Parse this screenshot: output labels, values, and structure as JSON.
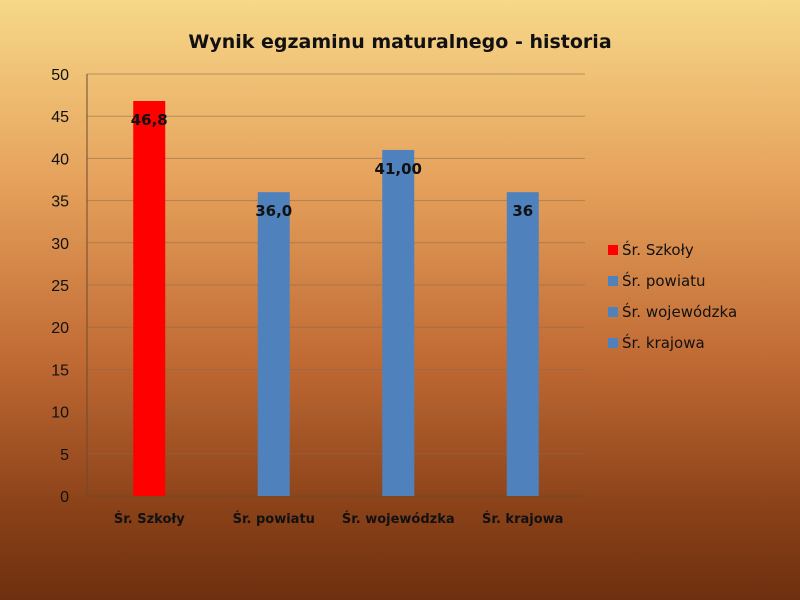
{
  "chart_data": {
    "type": "bar",
    "title": "Wynik egzaminu maturalnego - historia",
    "xlabel": "",
    "ylabel": "",
    "categories": [
      "Śr. Szkoły",
      "Śr. powiatu",
      "Śr. wojewódzka",
      "Śr. krajowa"
    ],
    "values": [
      46.8,
      36.0,
      41.0,
      36.0
    ],
    "data_labels": [
      "46,8",
      "36,0",
      "41,00",
      "36"
    ],
    "colors": [
      "#ff0000",
      "#4f81bd",
      "#4f81bd",
      "#4f81bd"
    ],
    "ylim": [
      0,
      50
    ],
    "yticks": [
      0,
      5,
      10,
      15,
      20,
      25,
      30,
      35,
      40,
      45,
      50
    ],
    "grid": true,
    "legend": {
      "placement": "right",
      "entries": [
        "Śr. Szkoły",
        "Śr. powiatu",
        "Śr. wojewódzka",
        "Śr. krajowa"
      ]
    }
  }
}
